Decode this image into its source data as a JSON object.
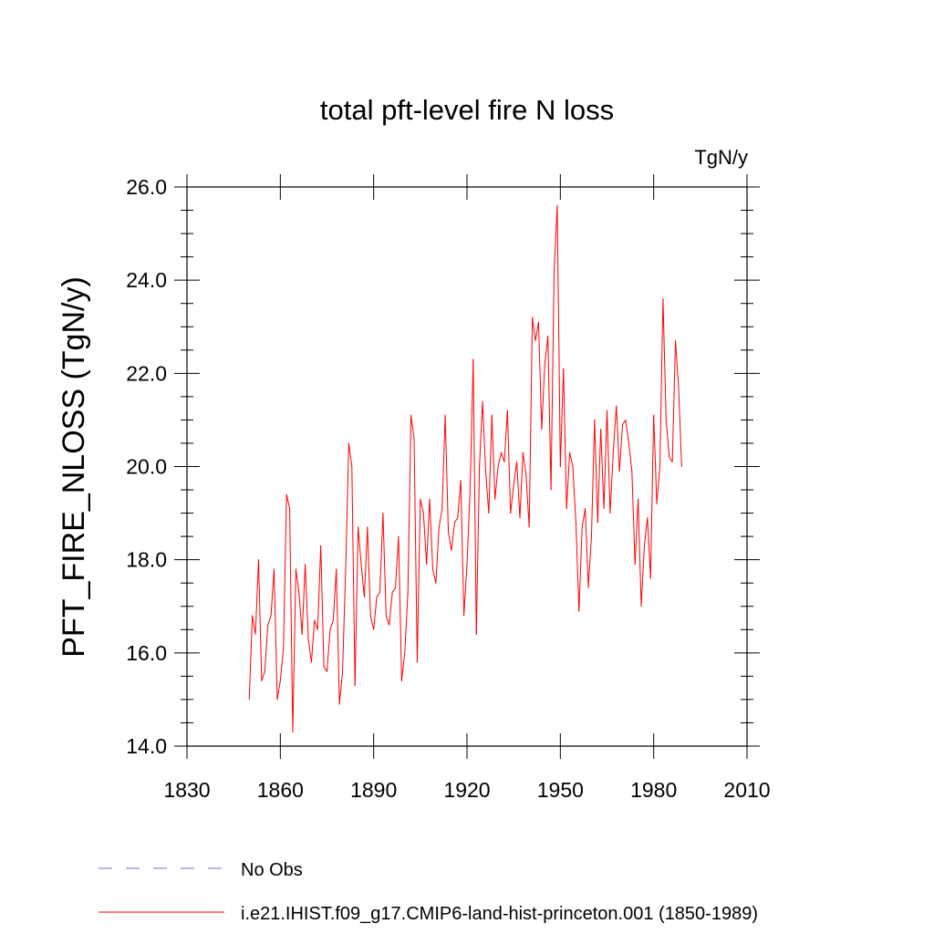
{
  "chart_data": {
    "type": "line",
    "title": "total pft-level fire N loss",
    "units": "TgN/y",
    "xlabel": "",
    "ylabel": "PFT_FIRE_NLOSS  (TgN/y)",
    "xlim": [
      1830,
      2010
    ],
    "ylim": [
      14.0,
      26.0
    ],
    "x_ticks": [
      1830,
      1860,
      1890,
      1920,
      1950,
      1980,
      2010
    ],
    "x_tick_labels": [
      "1830",
      "1860",
      "1890",
      "1920",
      "1950",
      "1980",
      "2010"
    ],
    "y_ticks": [
      14,
      16,
      18,
      20,
      22,
      24,
      26
    ],
    "y_tick_labels": [
      "14.0",
      "16.0",
      "18.0",
      "20.0",
      "22.0",
      "24.0",
      "26.0"
    ],
    "grid": false,
    "legend_position": "bottom",
    "series": [
      {
        "name": "No Obs",
        "color": "#7b68c8",
        "dash": "dashed",
        "x": [],
        "y": []
      },
      {
        "name": "i.e21.IHIST.f09_g17.CMIP6-land-hist-princeton.001 (1850-1989)",
        "color": "#ff0000",
        "dash": "solid",
        "x_start": 1850,
        "values": [
          15.0,
          16.8,
          16.4,
          18.0,
          15.4,
          15.6,
          16.6,
          16.8,
          17.8,
          15.0,
          15.4,
          16.1,
          19.4,
          19.1,
          14.3,
          17.8,
          17.3,
          16.4,
          17.9,
          16.3,
          15.8,
          16.7,
          16.5,
          18.3,
          15.7,
          15.6,
          16.5,
          16.7,
          17.8,
          14.9,
          15.6,
          17.8,
          20.5,
          20.0,
          15.3,
          18.7,
          17.9,
          17.2,
          18.7,
          16.8,
          16.5,
          17.2,
          17.3,
          19.0,
          16.8,
          16.6,
          17.3,
          17.4,
          18.5,
          15.4,
          16.0,
          17.3,
          21.1,
          20.6,
          15.8,
          19.3,
          19.0,
          17.9,
          19.3,
          17.8,
          17.5,
          18.7,
          19.1,
          21.1,
          18.6,
          18.2,
          18.8,
          18.9,
          19.7,
          16.8,
          17.9,
          19.5,
          22.3,
          16.4,
          20.0,
          21.4,
          19.9,
          19.0,
          21.1,
          19.3,
          20.0,
          20.3,
          20.1,
          21.2,
          19.0,
          19.6,
          20.1,
          18.9,
          20.3,
          19.8,
          18.7,
          23.2,
          22.7,
          23.1,
          20.8,
          22.2,
          22.8,
          19.5,
          24.2,
          25.6,
          20.0,
          22.1,
          19.1,
          20.3,
          20.0,
          18.8,
          16.9,
          18.7,
          19.1,
          17.4,
          18.5,
          21.0,
          18.8,
          20.8,
          19.1,
          21.2,
          19.0,
          20.3,
          21.3,
          19.9,
          20.9,
          21.0,
          20.5,
          19.9,
          17.9,
          19.3,
          17.0,
          18.3,
          18.9,
          17.6,
          21.1,
          19.2,
          20.0,
          23.6,
          21.0,
          20.2,
          20.1,
          22.7,
          21.7,
          20.0
        ]
      }
    ]
  }
}
